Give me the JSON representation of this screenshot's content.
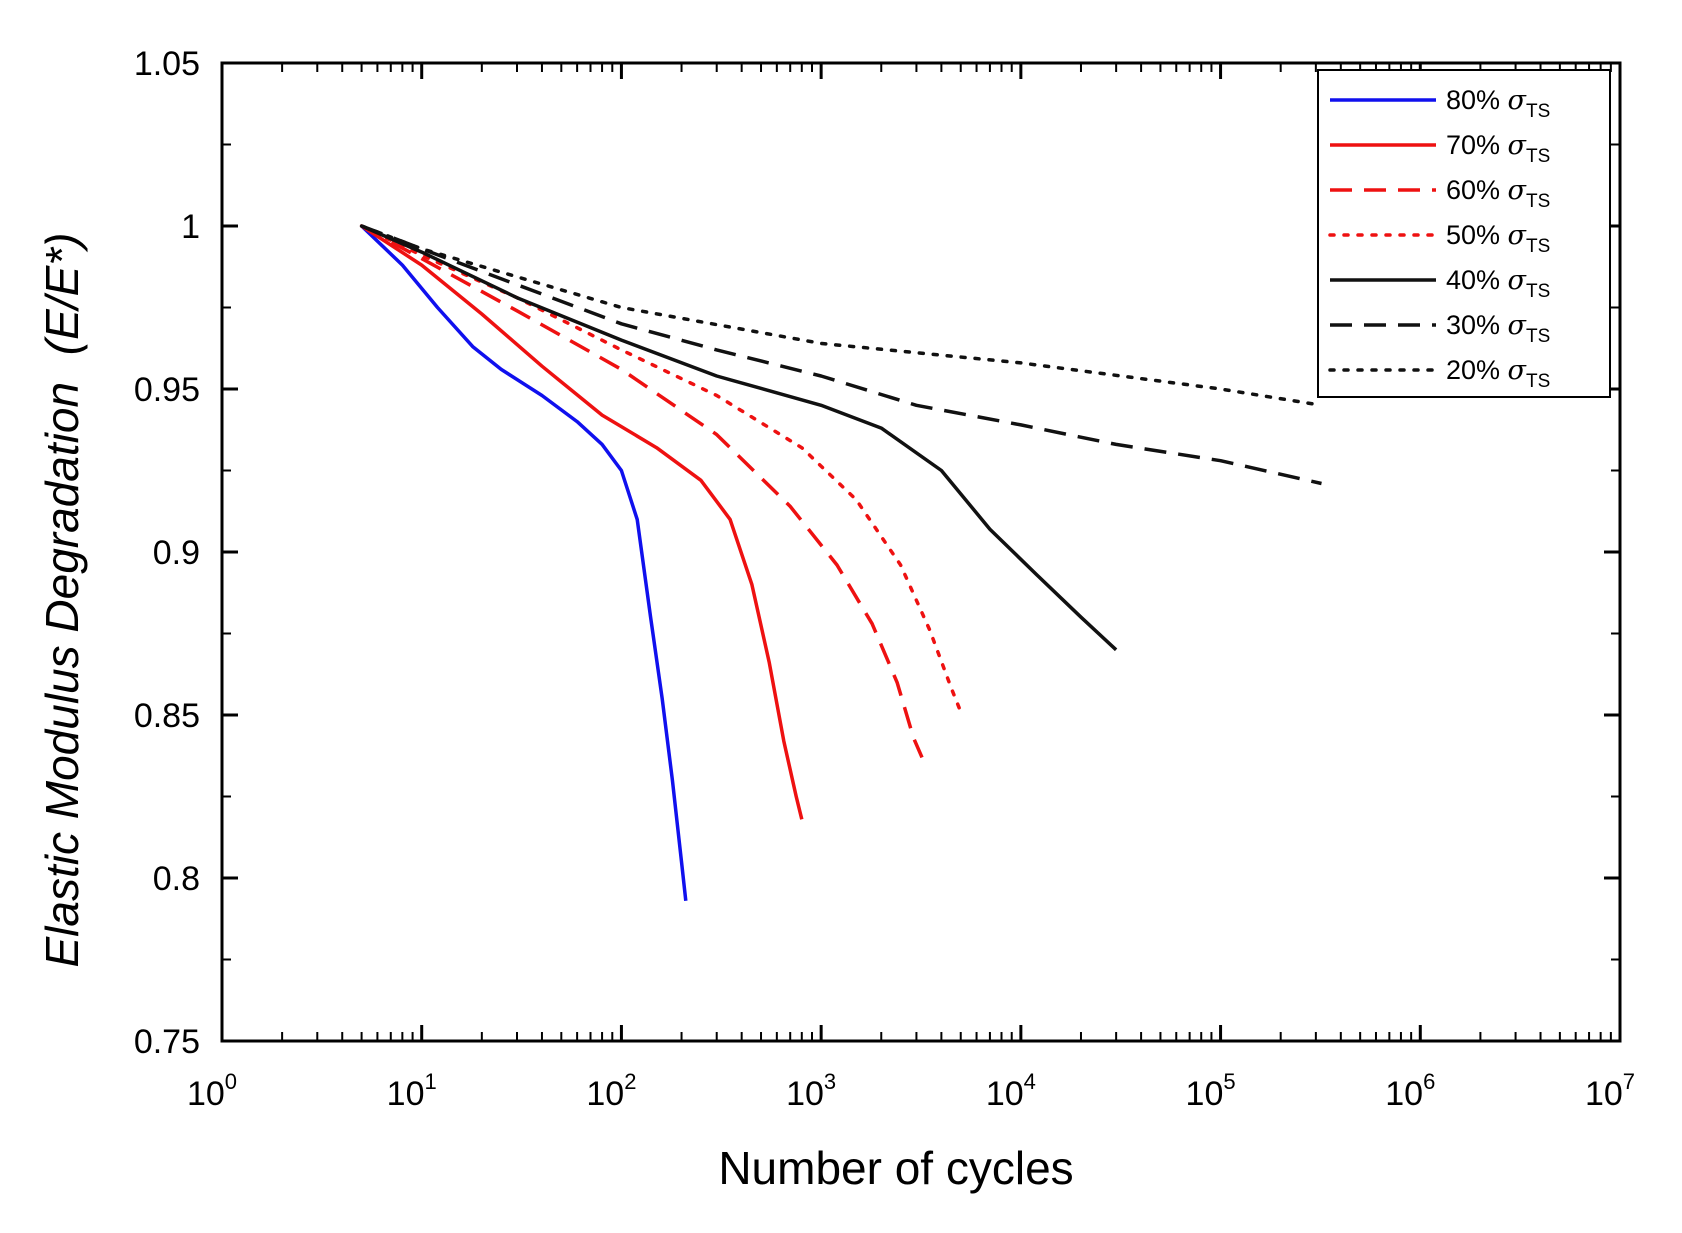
{
  "chart_data": {
    "type": "line",
    "xlabel": "Number of cycles",
    "ylabel_main": "Elastic Modulus Degradation",
    "ylabel_paren": "(E/E*)",
    "x_scale": "log",
    "xlim": [
      1,
      10000000
    ],
    "ylim": [
      0.75,
      1.05
    ],
    "x_ticks": [
      {
        "base": "10",
        "exp": "0"
      },
      {
        "base": "10",
        "exp": "1"
      },
      {
        "base": "10",
        "exp": "2"
      },
      {
        "base": "10",
        "exp": "3"
      },
      {
        "base": "10",
        "exp": "4"
      },
      {
        "base": "10",
        "exp": "5"
      },
      {
        "base": "10",
        "exp": "6"
      },
      {
        "base": "10",
        "exp": "7"
      }
    ],
    "y_ticks": [
      "0.75",
      "0.8",
      "0.85",
      "0.9",
      "0.95",
      "1",
      "1.05"
    ],
    "legend_position": "top-right",
    "series": [
      {
        "name": "80%",
        "sub": "TS",
        "color": "#1010ee",
        "dash": "solid",
        "x": [
          5,
          8,
          12,
          18,
          25,
          40,
          60,
          80,
          100,
          120,
          140,
          160,
          180,
          200,
          210
        ],
        "y": [
          1.0,
          0.988,
          0.975,
          0.963,
          0.956,
          0.948,
          0.94,
          0.933,
          0.925,
          0.91,
          0.88,
          0.855,
          0.83,
          0.805,
          0.793
        ]
      },
      {
        "name": "70%",
        "sub": "TS",
        "color": "#ee1111",
        "dash": "solid",
        "x": [
          5,
          10,
          20,
          40,
          80,
          150,
          250,
          350,
          450,
          550,
          650,
          750,
          800
        ],
        "y": [
          1.0,
          0.988,
          0.973,
          0.957,
          0.942,
          0.932,
          0.922,
          0.91,
          0.89,
          0.866,
          0.842,
          0.825,
          0.818
        ]
      },
      {
        "name": "60%",
        "sub": "TS",
        "color": "#ee1111",
        "dash": "dashed",
        "x": [
          5,
          10,
          30,
          100,
          300,
          700,
          1200,
          1800,
          2400,
          2900,
          3200
        ],
        "y": [
          1.0,
          0.99,
          0.974,
          0.956,
          0.936,
          0.914,
          0.896,
          0.878,
          0.86,
          0.843,
          0.837
        ]
      },
      {
        "name": "50%",
        "sub": "TS",
        "color": "#ee1111",
        "dash": "dotted",
        "x": [
          5,
          10,
          30,
          100,
          300,
          800,
          1500,
          2500,
          3500,
          4500,
          5000
        ],
        "y": [
          1.0,
          0.991,
          0.978,
          0.962,
          0.948,
          0.932,
          0.916,
          0.896,
          0.876,
          0.858,
          0.851
        ]
      },
      {
        "name": "40%",
        "sub": "TS",
        "color": "#111111",
        "dash": "solid",
        "x": [
          5,
          10,
          30,
          100,
          300,
          1000,
          2000,
          4000,
          7000,
          12000,
          20000,
          30000
        ],
        "y": [
          1.0,
          0.992,
          0.978,
          0.965,
          0.954,
          0.945,
          0.938,
          0.925,
          0.907,
          0.893,
          0.88,
          0.87
        ]
      },
      {
        "name": "30%",
        "sub": "TS",
        "color": "#111111",
        "dash": "dashed",
        "x": [
          5,
          10,
          30,
          100,
          300,
          1000,
          3000,
          10000,
          30000,
          100000,
          320000
        ],
        "y": [
          1.0,
          0.993,
          0.982,
          0.97,
          0.962,
          0.954,
          0.945,
          0.939,
          0.933,
          0.928,
          0.921
        ]
      },
      {
        "name": "20%",
        "sub": "TS",
        "color": "#111111",
        "dash": "dotted",
        "x": [
          5,
          10,
          100,
          1000,
          10000,
          100000,
          320000
        ],
        "y": [
          1.0,
          0.993,
          0.975,
          0.964,
          0.958,
          0.95,
          0.945
        ]
      }
    ]
  }
}
